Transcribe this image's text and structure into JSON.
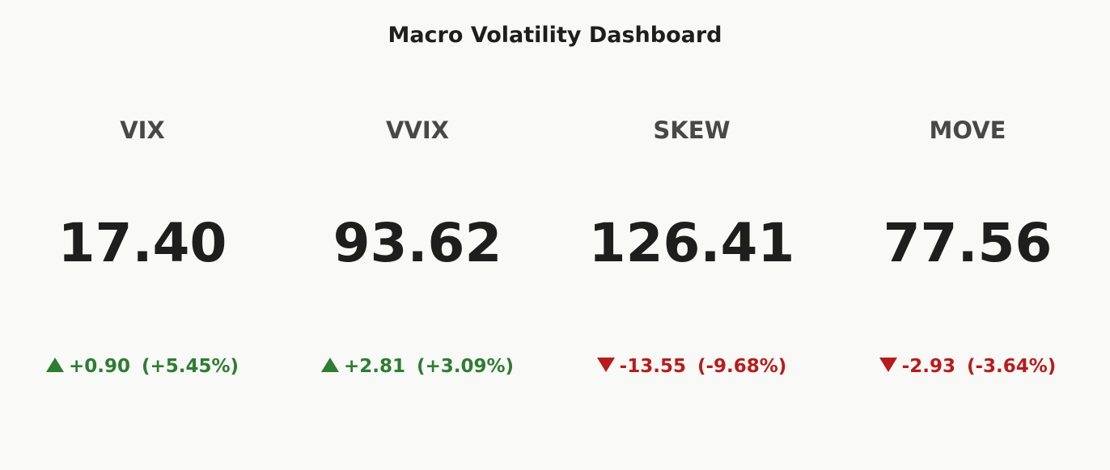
{
  "title": "Macro Volatility Dashboard",
  "indicators": [
    {
      "label": "VIX",
      "value": "17.40",
      "delta": "+0.90",
      "relative": "(+5.45%)",
      "direction": "up",
      "color": "#2e7d32"
    },
    {
      "label": "VVIX",
      "value": "93.62",
      "delta": "+2.81",
      "relative": "(+3.09%)",
      "direction": "up",
      "color": "#2e7d32"
    },
    {
      "label": "SKEW",
      "value": "126.41",
      "delta": "-13.55",
      "relative": "(-9.68%)",
      "direction": "down",
      "color": "#b71c1c"
    },
    {
      "label": "MOVE",
      "value": "77.56",
      "delta": "-2.93",
      "relative": "(-3.64%)",
      "direction": "down",
      "color": "#b71c1c"
    }
  ]
}
